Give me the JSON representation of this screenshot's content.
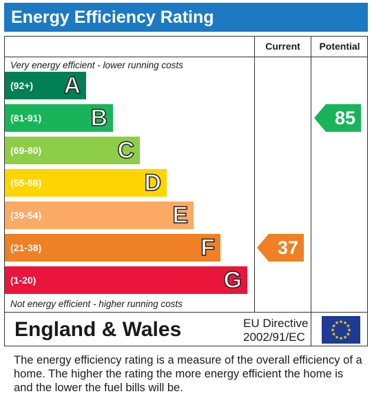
{
  "title": "Energy Efficiency Rating",
  "columns": {
    "current": "Current",
    "potential": "Potential"
  },
  "captions": {
    "top": "Very energy efficient - lower running costs",
    "bottom": "Not energy efficient - higher running costs"
  },
  "bands": [
    {
      "range": "(92+)",
      "letter": "A",
      "color": "#008054"
    },
    {
      "range": "(81-91)",
      "letter": "B",
      "color": "#19b459"
    },
    {
      "range": "(69-80)",
      "letter": "C",
      "color": "#8dce46"
    },
    {
      "range": "(55-68)",
      "letter": "D",
      "color": "#ffd500"
    },
    {
      "range": "(39-54)",
      "letter": "E",
      "color": "#fcaa65"
    },
    {
      "range": "(21-38)",
      "letter": "F",
      "color": "#ef8023"
    },
    {
      "range": "(1-20)",
      "letter": "G",
      "color": "#e9153b"
    }
  ],
  "current_rating": {
    "value": "37",
    "band": "F",
    "color": "#ef8023"
  },
  "potential_rating": {
    "value": "85",
    "band": "B",
    "color": "#19b459"
  },
  "footer": {
    "region": "England & Wales",
    "directive_line1": "EU Directive",
    "directive_line2": "2002/91/EC",
    "flag_icon": "eu-flag-icon"
  },
  "description": "The energy efficiency rating is a measure of the overall efficiency of a home. The higher the rating the more energy efficient the home is and the lower the fuel bills will be."
}
